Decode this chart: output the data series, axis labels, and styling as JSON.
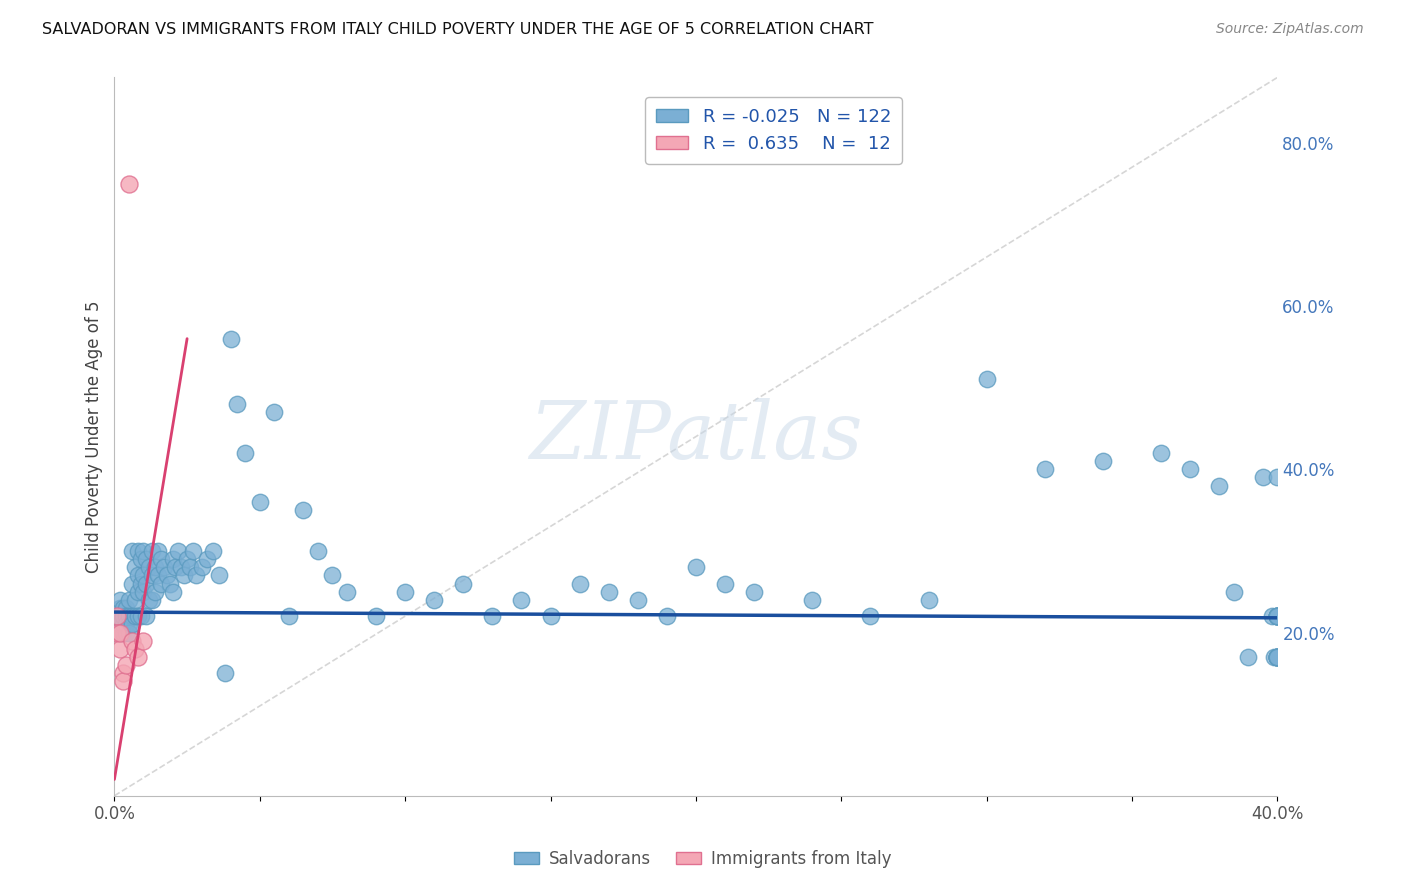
{
  "title": "SALVADORAN VS IMMIGRANTS FROM ITALY CHILD POVERTY UNDER THE AGE OF 5 CORRELATION CHART",
  "source": "Source: ZipAtlas.com",
  "ylabel": "Child Poverty Under the Age of 5",
  "x_min": 0.0,
  "x_max": 0.4,
  "y_min": 0.0,
  "y_max": 0.88,
  "right_yticks": [
    0.2,
    0.4,
    0.6,
    0.8
  ],
  "right_yticklabels": [
    "20.0%",
    "40.0%",
    "60.0%",
    "80.0%"
  ],
  "legend_R1": "-0.025",
  "legend_N1": "122",
  "legend_R2": "0.635",
  "legend_N2": "12",
  "blue_color": "#7BAFD4",
  "blue_edge_color": "#5A9ABF",
  "pink_color": "#F4A7B5",
  "pink_edge_color": "#E07090",
  "trend_blue_color": "#1A4F9E",
  "trend_pink_color": "#D94070",
  "diag_color": "#CCCCCC",
  "grid_color": "#E0E0E0",
  "bg_color": "#FFFFFF",
  "watermark_color": "#C8D8E8",
  "blue_scatter_x": [
    0.001,
    0.001,
    0.002,
    0.002,
    0.002,
    0.002,
    0.002,
    0.003,
    0.003,
    0.003,
    0.003,
    0.003,
    0.004,
    0.004,
    0.004,
    0.004,
    0.005,
    0.005,
    0.005,
    0.005,
    0.006,
    0.006,
    0.006,
    0.006,
    0.007,
    0.007,
    0.007,
    0.008,
    0.008,
    0.008,
    0.008,
    0.009,
    0.009,
    0.009,
    0.01,
    0.01,
    0.01,
    0.011,
    0.011,
    0.011,
    0.012,
    0.012,
    0.013,
    0.013,
    0.013,
    0.014,
    0.014,
    0.015,
    0.015,
    0.016,
    0.016,
    0.017,
    0.018,
    0.019,
    0.02,
    0.02,
    0.021,
    0.022,
    0.023,
    0.024,
    0.025,
    0.026,
    0.027,
    0.028,
    0.03,
    0.032,
    0.034,
    0.036,
    0.038,
    0.04,
    0.042,
    0.045,
    0.05,
    0.055,
    0.06,
    0.065,
    0.07,
    0.075,
    0.08,
    0.09,
    0.1,
    0.11,
    0.12,
    0.13,
    0.14,
    0.15,
    0.16,
    0.17,
    0.18,
    0.19,
    0.2,
    0.21,
    0.22,
    0.24,
    0.26,
    0.28,
    0.3,
    0.32,
    0.34,
    0.36,
    0.37,
    0.38,
    0.385,
    0.39,
    0.395,
    0.398,
    0.399,
    0.4,
    0.4,
    0.4,
    0.4,
    0.4,
    0.4,
    0.4,
    0.4,
    0.4,
    0.4,
    0.4,
    0.4,
    0.4,
    0.4,
    0.4
  ],
  "blue_scatter_y": [
    0.22,
    0.21,
    0.23,
    0.2,
    0.24,
    0.22,
    0.21,
    0.22,
    0.23,
    0.2,
    0.21,
    0.22,
    0.23,
    0.2,
    0.22,
    0.21,
    0.24,
    0.22,
    0.21,
    0.2,
    0.3,
    0.26,
    0.22,
    0.21,
    0.28,
    0.24,
    0.22,
    0.3,
    0.27,
    0.22,
    0.25,
    0.29,
    0.26,
    0.22,
    0.27,
    0.3,
    0.25,
    0.29,
    0.26,
    0.22,
    0.28,
    0.24,
    0.3,
    0.27,
    0.24,
    0.28,
    0.25,
    0.3,
    0.27,
    0.29,
    0.26,
    0.28,
    0.27,
    0.26,
    0.29,
    0.25,
    0.28,
    0.3,
    0.28,
    0.27,
    0.29,
    0.28,
    0.3,
    0.27,
    0.28,
    0.29,
    0.3,
    0.27,
    0.15,
    0.56,
    0.48,
    0.42,
    0.36,
    0.47,
    0.22,
    0.35,
    0.3,
    0.27,
    0.25,
    0.22,
    0.25,
    0.24,
    0.26,
    0.22,
    0.24,
    0.22,
    0.26,
    0.25,
    0.24,
    0.22,
    0.28,
    0.26,
    0.25,
    0.24,
    0.22,
    0.24,
    0.51,
    0.4,
    0.41,
    0.42,
    0.4,
    0.38,
    0.25,
    0.17,
    0.39,
    0.22,
    0.17,
    0.39,
    0.22,
    0.17,
    0.22,
    0.17,
    0.22,
    0.17,
    0.22,
    0.17,
    0.22,
    0.17,
    0.22,
    0.17,
    0.22,
    0.17
  ],
  "pink_scatter_x": [
    0.001,
    0.001,
    0.002,
    0.002,
    0.003,
    0.003,
    0.004,
    0.005,
    0.006,
    0.007,
    0.008,
    0.01
  ],
  "pink_scatter_y": [
    0.22,
    0.2,
    0.18,
    0.2,
    0.15,
    0.14,
    0.16,
    0.75,
    0.19,
    0.18,
    0.17,
    0.19
  ],
  "blue_trend_x": [
    0.0,
    0.4
  ],
  "blue_trend_y": [
    0.225,
    0.218
  ],
  "pink_trend_x": [
    0.0,
    0.025
  ],
  "pink_trend_y": [
    0.02,
    0.56
  ],
  "diag_trend_x": [
    0.0,
    0.4
  ],
  "diag_trend_y": [
    0.0,
    0.88
  ]
}
